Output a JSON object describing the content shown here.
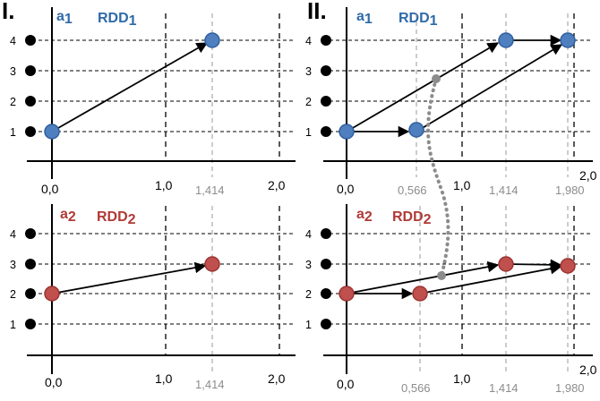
{
  "panels": {
    "I": {
      "roman": "I.",
      "rdd1": {
        "agent": "a",
        "agent_sub": "1",
        "name": "RDD",
        "name_sub": "1",
        "ticks": [
          "0,0",
          "1,0",
          "2,0"
        ],
        "ticks_grey": [
          "1,414"
        ]
      },
      "rdd2": {
        "agent": "a",
        "agent_sub": "2",
        "name": "RDD",
        "name_sub": "2",
        "ticks": [
          "0,0",
          "1,0",
          "2,0"
        ],
        "ticks_grey": [
          "1,414"
        ]
      }
    },
    "II": {
      "roman": "II.",
      "rdd1": {
        "agent": "a",
        "agent_sub": "1",
        "name": "RDD",
        "name_sub": "1",
        "ticks": [
          "0,0",
          "1,0",
          "2,0"
        ],
        "ticks_grey": [
          "0,566",
          "1,414",
          "1,980"
        ]
      },
      "rdd2": {
        "agent": "a",
        "agent_sub": "2",
        "name": "RDD",
        "name_sub": "2",
        "ticks": [
          "0,0",
          "1,0",
          "2,0"
        ],
        "ticks_grey": [
          "0,566",
          "1,414",
          "1,980"
        ]
      }
    }
  },
  "levels": [
    "1",
    "2",
    "3",
    "4"
  ],
  "colors": {
    "blue": "#4f7fbf",
    "red": "#c0504d",
    "grey": "#8c8c8c"
  }
}
